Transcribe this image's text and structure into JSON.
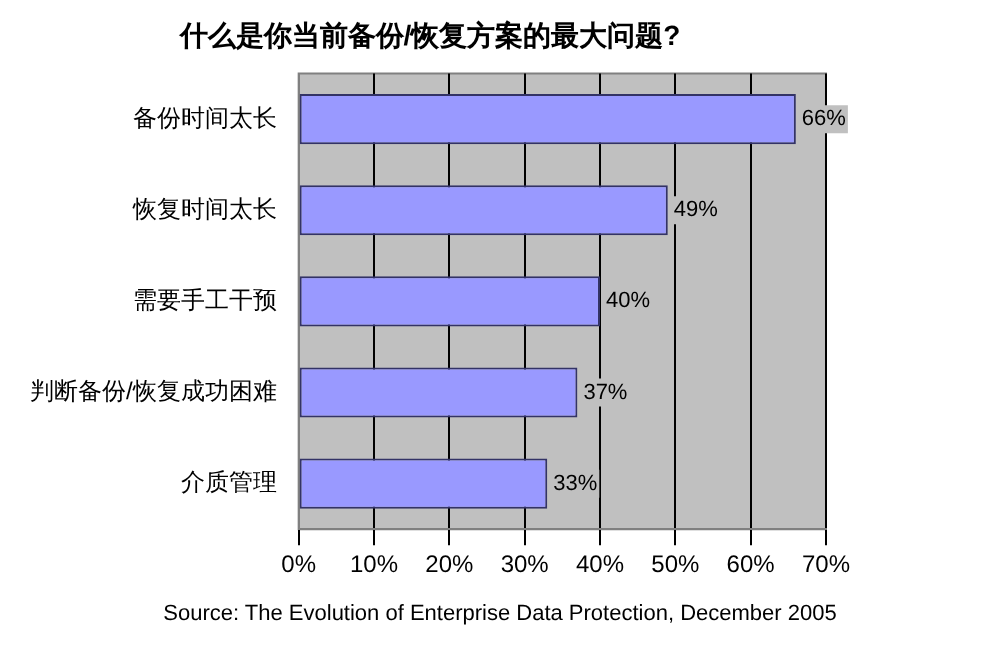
{
  "chart_data": {
    "type": "bar",
    "orientation": "horizontal",
    "title": "什么是你当前备份/恢复方案的最大问题?",
    "categories": [
      "备份时间太长",
      "恢复时间太长",
      "需要手工干预",
      "判断备份/恢复成功困难",
      "介质管理"
    ],
    "values": [
      66,
      49,
      40,
      37,
      33
    ],
    "color": "#9999ff",
    "value_labels": [
      "66%",
      "49%",
      "40%",
      "37%",
      "33%"
    ],
    "xlim": [
      0,
      70
    ],
    "xticks": [
      {
        "value": 0,
        "label": "0%"
      },
      {
        "value": 10,
        "label": "10%"
      },
      {
        "value": 20,
        "label": "20%"
      },
      {
        "value": 30,
        "label": "30%"
      },
      {
        "value": 40,
        "label": "40%"
      },
      {
        "value": 50,
        "label": "50%"
      },
      {
        "value": 60,
        "label": "60%"
      },
      {
        "value": 70,
        "label": "70%"
      }
    ],
    "grid": "x",
    "legend": false,
    "annotations": [
      "Source: The Evolution of Enterprise Data Protection, December 2005"
    ]
  }
}
